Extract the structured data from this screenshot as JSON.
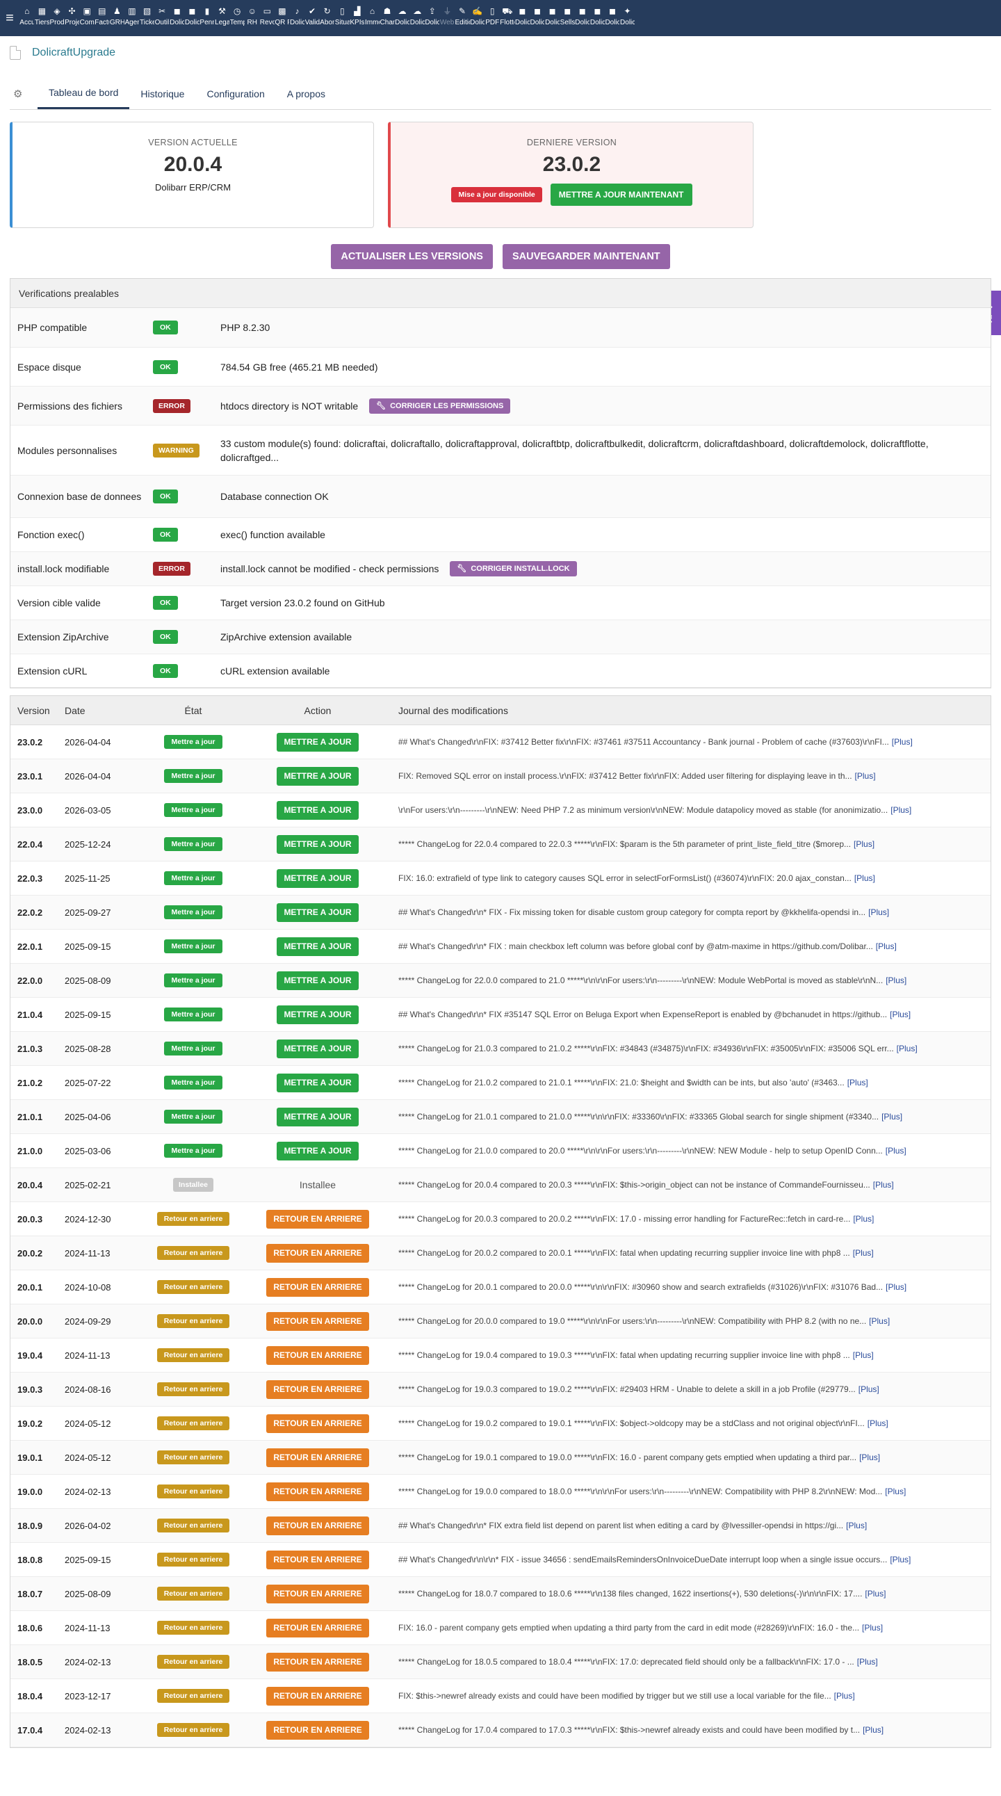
{
  "nav": {
    "items": [
      {
        "label": "Accueil",
        "icon": "home-icon",
        "glyph": "⌂"
      },
      {
        "label": "Tiers",
        "icon": "building-icon",
        "glyph": "▦"
      },
      {
        "label": "Produits",
        "icon": "cube-icon",
        "glyph": "◈"
      },
      {
        "label": "Projets",
        "icon": "project-icon",
        "glyph": "✣"
      },
      {
        "label": "Commercial",
        "icon": "briefcase-icon",
        "glyph": "▣"
      },
      {
        "label": "Facturation",
        "icon": "money-icon",
        "glyph": "▤"
      },
      {
        "label": "GRH",
        "icon": "users-icon",
        "glyph": "♟"
      },
      {
        "label": "Agenda",
        "icon": "calendar-icon",
        "glyph": "▥"
      },
      {
        "label": "Tickets",
        "icon": "ticket-icon",
        "glyph": "▧"
      },
      {
        "label": "Outils",
        "icon": "tools-icon",
        "glyph": "✂"
      },
      {
        "label": "Dolicraft",
        "icon": "dolicraft-icon",
        "glyph": "◼"
      },
      {
        "label": "Dolicraft",
        "icon": "dolicraft-icon",
        "glyph": "◼"
      },
      {
        "label": "Pennylane",
        "icon": "pen-icon",
        "glyph": "▮"
      },
      {
        "label": "Legal",
        "icon": "gavel-icon",
        "glyph": "⚒"
      },
      {
        "label": "Temps",
        "icon": "clock-icon",
        "glyph": "◷"
      },
      {
        "label": "RH",
        "icon": "team-icon",
        "glyph": "☺"
      },
      {
        "label": "Revolut",
        "icon": "bank-icon",
        "glyph": "▭"
      },
      {
        "label": "QR Factures",
        "icon": "qrcode-icon",
        "glyph": "▩"
      },
      {
        "label": "Dolicraft",
        "icon": "bell-icon",
        "glyph": "♪"
      },
      {
        "label": "Validation",
        "icon": "check-double-icon",
        "glyph": "✔"
      },
      {
        "label": "Abonnements",
        "icon": "refresh-icon",
        "glyph": "↻"
      },
      {
        "label": "Situations",
        "icon": "file-icon",
        "glyph": "▯"
      },
      {
        "label": "KPIs",
        "icon": "chart-icon",
        "glyph": "▟"
      },
      {
        "label": "Immobilier",
        "icon": "house-icon",
        "glyph": "⌂"
      },
      {
        "label": "Chantiers",
        "icon": "hardhat-icon",
        "glyph": "☗"
      },
      {
        "label": "Dolicraft",
        "icon": "cloud-icon",
        "glyph": "☁"
      },
      {
        "label": "Dolicraft",
        "icon": "cloud-upload-icon",
        "glyph": "☁"
      },
      {
        "label": "Dolicraft",
        "icon": "upload-icon",
        "glyph": "⇪"
      },
      {
        "label": "WebPortal",
        "icon": "plug-icon",
        "glyph": "⏚",
        "dim": true
      },
      {
        "label": "Editions",
        "icon": "edit-icon",
        "glyph": "✎"
      },
      {
        "label": "Dolicraft",
        "icon": "signature-icon",
        "glyph": "✍"
      },
      {
        "label": "PDF",
        "icon": "pdf-icon",
        "glyph": "▯"
      },
      {
        "label": "Flotte",
        "icon": "car-icon",
        "glyph": "⛟"
      },
      {
        "label": "Dolicraft",
        "icon": "dolicraft-icon",
        "glyph": "◼"
      },
      {
        "label": "Dolicraft",
        "icon": "dolicraft-icon",
        "glyph": "◼"
      },
      {
        "label": "Dolicraft",
        "icon": "dolicraft-icon",
        "glyph": "◼"
      },
      {
        "label": "Sellsy",
        "icon": "dolicraft-icon",
        "glyph": "◼"
      },
      {
        "label": "Dolicraft",
        "icon": "dolicraft-icon",
        "glyph": "◼"
      },
      {
        "label": "Dolicraft",
        "icon": "dolicraft-icon",
        "glyph": "◼"
      },
      {
        "label": "Dolicraft",
        "icon": "dolicraft-icon",
        "glyph": "◼"
      },
      {
        "label": "Dolicraft",
        "icon": "wand-icon",
        "glyph": "✦"
      }
    ]
  },
  "page": {
    "title": "DolicraftUpgrade"
  },
  "tabs": [
    {
      "label": "Tableau de bord",
      "active": true
    },
    {
      "label": "Historique"
    },
    {
      "label": "Configuration"
    },
    {
      "label": "A propos"
    }
  ],
  "current": {
    "title": "VERSION ACTUELLE",
    "version": "20.0.4",
    "product": "Dolibarr ERP/CRM"
  },
  "latest": {
    "title": "DERNIERE VERSION",
    "version": "23.0.2",
    "badge": "Mise a jour disponible",
    "button": "METTRE A JOUR MAINTENANT"
  },
  "actions": {
    "refresh": "ACTUALISER LES VERSIONS",
    "backup": "SAUVEGARDER MAINTENANT"
  },
  "ai": {
    "label": "AI"
  },
  "checks": {
    "title": "Verifications prealables",
    "rows": [
      {
        "name": "PHP compatible",
        "status": "OK",
        "type": "ok",
        "message": "PHP 8.2.30",
        "h": 57
      },
      {
        "name": "Espace disque",
        "status": "OK",
        "type": "ok",
        "message": "784.54 GB free (465.21 MB needed)",
        "h": 56
      },
      {
        "name": "Permissions des fichiers",
        "status": "ERROR",
        "type": "error",
        "message": "htdocs directory is NOT writable",
        "fix": "CORRIGER LES PERMISSIONS",
        "h": 56
      },
      {
        "name": "Modules personnalises",
        "status": "WARNING",
        "type": "warning",
        "message": "33 custom module(s) found: dolicraftai, dolicraftallo, dolicraftapproval, dolicraftbtp, dolicraftbulkedit, dolicraftcrm, dolicraftdashboard, dolicraftdemolock, dolicraftflotte, dolicraftged...",
        "h": 72
      },
      {
        "name": "Connexion base de donnees",
        "status": "OK",
        "type": "ok",
        "message": "Database connection OK",
        "h": 61
      },
      {
        "name": "Fonction exec()",
        "status": "OK",
        "type": "ok",
        "message": "exec() function available",
        "h": 49
      },
      {
        "name": "install.lock modifiable",
        "status": "ERROR",
        "type": "error",
        "message": "install.lock cannot be modified - check permissions",
        "fix": "CORRIGER INSTALL.LOCK",
        "h": 49
      },
      {
        "name": "Version cible valide",
        "status": "OK",
        "type": "ok",
        "message": "Target version 23.0.2 found on GitHub",
        "h": 49
      },
      {
        "name": "Extension ZipArchive",
        "status": "OK",
        "type": "ok",
        "message": "ZipArchive extension available",
        "h": 49
      },
      {
        "name": "Extension cURL",
        "status": "OK",
        "type": "ok",
        "message": "cURL extension available",
        "h": 48
      }
    ]
  },
  "versions": {
    "headers": {
      "version": "Version",
      "date": "Date",
      "state": "État",
      "action": "Action",
      "log": "Journal des modifications"
    },
    "plus": "[Plus]",
    "rows": [
      {
        "version": "23.0.2",
        "date": "2026-04-04",
        "state": "Mettre a jour",
        "stype": "uptodate",
        "action": "METTRE A JOUR",
        "atype": "update",
        "log": "## What's Changed\\r\\nFIX: #37412 Better fix\\r\\nFIX: #37461 #37511 Accountancy - Bank journal - Problem of cache (#37603)\\r\\nFI..."
      },
      {
        "version": "23.0.1",
        "date": "2026-04-04",
        "state": "Mettre a jour",
        "stype": "uptodate",
        "action": "METTRE A JOUR",
        "atype": "update",
        "log": "FIX: Removed SQL error on install process.\\r\\nFIX: #37412 Better fix\\r\\nFIX: Added user filtering for displaying leave in th..."
      },
      {
        "version": "23.0.0",
        "date": "2026-03-05",
        "state": "Mettre a jour",
        "stype": "uptodate",
        "action": "METTRE A JOUR",
        "atype": "update",
        "log": "\\r\\nFor users:\\r\\n---------\\r\\nNEW: Need PHP 7.2 as minimum version\\r\\nNEW: Module datapolicy moved as stable (for anonimizatio..."
      },
      {
        "version": "22.0.4",
        "date": "2025-12-24",
        "state": "Mettre a jour",
        "stype": "uptodate",
        "action": "METTRE A JOUR",
        "atype": "update",
        "log": "***** ChangeLog for 22.0.4 compared to 22.0.3 *****\\r\\nFIX: $param is the 5th parameter of print_liste_field_titre ($morep..."
      },
      {
        "version": "22.0.3",
        "date": "2025-11-25",
        "state": "Mettre a jour",
        "stype": "uptodate",
        "action": "METTRE A JOUR",
        "atype": "update",
        "log": "FIX: 16.0: extrafield of type link to category causes SQL error in selectForFormsList() (#36074)\\r\\nFIX: 20.0 ajax_constan..."
      },
      {
        "version": "22.0.2",
        "date": "2025-09-27",
        "state": "Mettre a jour",
        "stype": "uptodate",
        "action": "METTRE A JOUR",
        "atype": "update",
        "log": "## What's Changed\\r\\n* FIX - Fix missing token for disable custom group category for compta report by @kkhelifa-opendsi in..."
      },
      {
        "version": "22.0.1",
        "date": "2025-09-15",
        "state": "Mettre a jour",
        "stype": "uptodate",
        "action": "METTRE A JOUR",
        "atype": "update",
        "log": "## What's Changed\\r\\n* FIX : main checkbox left column was before global conf by @atm-maxime in https://github.com/Dolibar..."
      },
      {
        "version": "22.0.0",
        "date": "2025-08-09",
        "state": "Mettre a jour",
        "stype": "uptodate",
        "action": "METTRE A JOUR",
        "atype": "update",
        "log": "***** ChangeLog for 22.0.0 compared to 21.0 *****\\r\\n\\r\\nFor users:\\r\\n---------\\r\\nNEW: Module WebPortal is moved as stable\\r\\nN..."
      },
      {
        "version": "21.0.4",
        "date": "2025-09-15",
        "state": "Mettre a jour",
        "stype": "uptodate",
        "action": "METTRE A JOUR",
        "atype": "update",
        "log": "## What's Changed\\r\\n* FIX #35147 SQL Error on Beluga Export when ExpenseReport is enabled by @bchanudet in https://github..."
      },
      {
        "version": "21.0.3",
        "date": "2025-08-28",
        "state": "Mettre a jour",
        "stype": "uptodate",
        "action": "METTRE A JOUR",
        "atype": "update",
        "log": "***** ChangeLog for 21.0.3 compared to 21.0.2 *****\\r\\nFIX: #34843 (#34875)\\r\\nFIX: #34936\\r\\nFIX: #35005\\r\\nFIX: #35006 SQL err..."
      },
      {
        "version": "21.0.2",
        "date": "2025-07-22",
        "state": "Mettre a jour",
        "stype": "uptodate",
        "action": "METTRE A JOUR",
        "atype": "update",
        "log": "***** ChangeLog for 21.0.2 compared to 21.0.1 *****\\r\\nFIX: 21.0: $height and $width can be ints, but also 'auto' (#3463..."
      },
      {
        "version": "21.0.1",
        "date": "2025-04-06",
        "state": "Mettre a jour",
        "stype": "uptodate",
        "action": "METTRE A JOUR",
        "atype": "update",
        "log": "***** ChangeLog for 21.0.1 compared to 21.0.0 *****\\r\\n\\r\\nFIX: #33360\\r\\nFIX: #33365 Global search for single shipment (#3340..."
      },
      {
        "version": "21.0.0",
        "date": "2025-03-06",
        "state": "Mettre a jour",
        "stype": "uptodate",
        "action": "METTRE A JOUR",
        "atype": "update",
        "log": "***** ChangeLog for 21.0.0 compared to 20.0 *****\\r\\n\\r\\nFor users:\\r\\n---------\\r\\nNEW: NEW Module - help to setup OpenID Conn..."
      },
      {
        "version": "20.0.4",
        "date": "2025-02-21",
        "state": "Installee",
        "stype": "installed",
        "action": "Installee",
        "atype": "text",
        "log": "***** ChangeLog for 20.0.4 compared to 20.0.3 *****\\r\\nFIX: $this->origin_object can not be instance of CommandeFournisseu..."
      },
      {
        "version": "20.0.3",
        "date": "2024-12-30",
        "state": "Retour en arriere",
        "stype": "rollback",
        "action": "RETOUR EN ARRIERE",
        "atype": "rollback",
        "log": "***** ChangeLog for 20.0.3 compared to 20.0.2 *****\\r\\nFIX: 17.0 - missing error handling for FactureRec::fetch in card-re..."
      },
      {
        "version": "20.0.2",
        "date": "2024-11-13",
        "state": "Retour en arriere",
        "stype": "rollback",
        "action": "RETOUR EN ARRIERE",
        "atype": "rollback",
        "log": "***** ChangeLog for 20.0.2 compared to 20.0.1 *****\\r\\nFIX: fatal when updating recurring supplier invoice line with php8 ..."
      },
      {
        "version": "20.0.1",
        "date": "2024-10-08",
        "state": "Retour en arriere",
        "stype": "rollback",
        "action": "RETOUR EN ARRIERE",
        "atype": "rollback",
        "log": "***** ChangeLog for 20.0.1 compared to 20.0.0 *****\\r\\n\\r\\nFIX: #30960 show and search extrafields (#31026)\\r\\nFIX: #31076 Bad..."
      },
      {
        "version": "20.0.0",
        "date": "2024-09-29",
        "state": "Retour en arriere",
        "stype": "rollback",
        "action": "RETOUR EN ARRIERE",
        "atype": "rollback",
        "log": "***** ChangeLog for 20.0.0 compared to 19.0 *****\\r\\n\\r\\nFor users:\\r\\n---------\\r\\nNEW: Compatibility with PHP 8.2 (with no ne..."
      },
      {
        "version": "19.0.4",
        "date": "2024-11-13",
        "state": "Retour en arriere",
        "stype": "rollback",
        "action": "RETOUR EN ARRIERE",
        "atype": "rollback",
        "log": "***** ChangeLog for 19.0.4 compared to 19.0.3 *****\\r\\nFIX: fatal when updating recurring supplier invoice line with php8 ..."
      },
      {
        "version": "19.0.3",
        "date": "2024-08-16",
        "state": "Retour en arriere",
        "stype": "rollback",
        "action": "RETOUR EN ARRIERE",
        "atype": "rollback",
        "log": "***** ChangeLog for 19.0.3 compared to 19.0.2 *****\\r\\nFIX: #29403 HRM - Unable to delete a skill in a job Profile (#29779..."
      },
      {
        "version": "19.0.2",
        "date": "2024-05-12",
        "state": "Retour en arriere",
        "stype": "rollback",
        "action": "RETOUR EN ARRIERE",
        "atype": "rollback",
        "log": "***** ChangeLog for 19.0.2 compared to 19.0.1 *****\\r\\nFIX: $object->oldcopy may be a stdClass and not original object\\r\\nFI..."
      },
      {
        "version": "19.0.1",
        "date": "2024-05-12",
        "state": "Retour en arriere",
        "stype": "rollback",
        "action": "RETOUR EN ARRIERE",
        "atype": "rollback",
        "log": "***** ChangeLog for 19.0.1 compared to 19.0.0 *****\\r\\nFIX: 16.0 - parent company gets emptied when updating a third par..."
      },
      {
        "version": "19.0.0",
        "date": "2024-02-13",
        "state": "Retour en arriere",
        "stype": "rollback",
        "action": "RETOUR EN ARRIERE",
        "atype": "rollback",
        "log": "***** ChangeLog for 19.0.0 compared to 18.0.0 *****\\r\\n\\r\\nFor users:\\r\\n---------\\r\\nNEW: Compatibility with PHP 8.2\\r\\nNEW: Mod..."
      },
      {
        "version": "18.0.9",
        "date": "2026-04-02",
        "state": "Retour en arriere",
        "stype": "rollback",
        "action": "RETOUR EN ARRIERE",
        "atype": "rollback",
        "log": "## What's Changed\\r\\n* FIX extra field list depend on parent list when editing a card by @lvessiller-opendsi in https://gi..."
      },
      {
        "version": "18.0.8",
        "date": "2025-09-15",
        "state": "Retour en arriere",
        "stype": "rollback",
        "action": "RETOUR EN ARRIERE",
        "atype": "rollback",
        "log": "## What's Changed\\r\\n\\r\\n* FIX - issue 34656 : sendEmailsRemindersOnInvoiceDueDate interrupt loop when a single issue occurs..."
      },
      {
        "version": "18.0.7",
        "date": "2025-08-09",
        "state": "Retour en arriere",
        "stype": "rollback",
        "action": "RETOUR EN ARRIERE",
        "atype": "rollback",
        "log": "***** ChangeLog for 18.0.7 compared to 18.0.6 *****\\r\\n138 files changed, 1622 insertions(+), 530 deletions(-)\\r\\n\\r\\nFIX: 17...."
      },
      {
        "version": "18.0.6",
        "date": "2024-11-13",
        "state": "Retour en arriere",
        "stype": "rollback",
        "action": "RETOUR EN ARRIERE",
        "atype": "rollback",
        "log": "FIX: 16.0 - parent company gets emptied when updating a third party from the card in edit mode (#28269)\\r\\nFIX: 16.0 - the..."
      },
      {
        "version": "18.0.5",
        "date": "2024-02-13",
        "state": "Retour en arriere",
        "stype": "rollback",
        "action": "RETOUR EN ARRIERE",
        "atype": "rollback",
        "log": "***** ChangeLog for 18.0.5 compared to 18.0.4 *****\\r\\nFIX: 17.0: deprecated field should only be a fallback\\r\\nFIX: 17.0 - ..."
      },
      {
        "version": "18.0.4",
        "date": "2023-12-17",
        "state": "Retour en arriere",
        "stype": "rollback",
        "action": "RETOUR EN ARRIERE",
        "atype": "rollback",
        "log": "FIX: $this->newref already exists and could have been modified by trigger but we still use a local variable for the file..."
      },
      {
        "version": "17.0.4",
        "date": "2024-02-13",
        "state": "Retour en arriere",
        "stype": "rollback",
        "action": "RETOUR EN ARRIERE",
        "atype": "rollback",
        "log": "***** ChangeLog for 17.0.4 compared to 17.0.3 *****\\r\\nFIX: $this->newref already exists and could have been modified by t..."
      }
    ]
  }
}
